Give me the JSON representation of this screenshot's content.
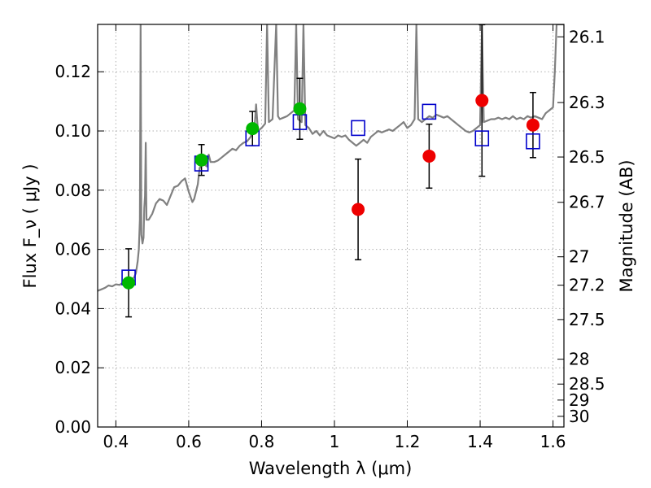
{
  "chart_data": {
    "type": "scatter",
    "xlabel": "Wavelength  λ (μm)",
    "ylabel": "Flux  F_ν  ( μJy )",
    "ylabel_right": "Magnitude (AB)",
    "xlim": [
      0.35,
      1.63
    ],
    "ylim": [
      0.0,
      0.136
    ],
    "grid": true,
    "x_ticks": [
      0.4,
      0.6,
      0.8,
      1.0,
      1.2,
      1.4,
      1.6
    ],
    "x_tick_labels": [
      "0.4",
      "0.6",
      "0.8",
      "1",
      "1.2",
      "1.4",
      "1.6"
    ],
    "y_ticks": [
      0.0,
      0.02,
      0.04,
      0.06,
      0.08,
      0.1,
      0.12
    ],
    "y_tick_labels": [
      "0.00",
      "0.02",
      "0.04",
      "0.06",
      "0.08",
      "0.10",
      "0.12"
    ],
    "right_ticks": [
      {
        "flux": 0.1318,
        "label": "26.1"
      },
      {
        "flux": 0.1096,
        "label": "26.3"
      },
      {
        "flux": 0.0912,
        "label": "26.5"
      },
      {
        "flux": 0.0759,
        "label": "26.7"
      },
      {
        "flux": 0.0575,
        "label": "27"
      },
      {
        "flux": 0.0479,
        "label": "27.2"
      },
      {
        "flux": 0.0363,
        "label": "27.5"
      },
      {
        "flux": 0.0229,
        "label": "28"
      },
      {
        "flux": 0.0145,
        "label": "28.5"
      },
      {
        "flux": 0.0091,
        "label": "29"
      },
      {
        "flux": 0.0036,
        "label": "30"
      }
    ],
    "colors": {
      "spectrum": "#808080",
      "model": "#0000cc",
      "green": "#00b800",
      "red": "#ee0000",
      "error": "#000000",
      "grid": "#b0b0b0"
    },
    "model_points": [
      {
        "x": 0.435,
        "y": 0.0505
      },
      {
        "x": 0.635,
        "y": 0.089
      },
      {
        "x": 0.775,
        "y": 0.0975
      },
      {
        "x": 0.905,
        "y": 0.103
      },
      {
        "x": 1.065,
        "y": 0.101
      },
      {
        "x": 1.26,
        "y": 0.1065
      },
      {
        "x": 1.405,
        "y": 0.0975
      },
      {
        "x": 1.545,
        "y": 0.0965
      }
    ],
    "observed_green": [
      {
        "x": 0.435,
        "y": 0.0487,
        "err": 0.0115
      },
      {
        "x": 0.635,
        "y": 0.0902,
        "err": 0.0052
      },
      {
        "x": 0.775,
        "y": 0.1008,
        "err": 0.0058
      },
      {
        "x": 0.905,
        "y": 0.1075,
        "err": 0.0103
      }
    ],
    "observed_red": [
      {
        "x": 1.065,
        "y": 0.0735,
        "err": 0.017
      },
      {
        "x": 1.26,
        "y": 0.0915,
        "err": 0.0108
      },
      {
        "x": 1.405,
        "y": 0.1103,
        "err": 0.0256
      },
      {
        "x": 1.545,
        "y": 0.102,
        "err": 0.011
      }
    ],
    "spectrum": [
      [
        0.35,
        0.046
      ],
      [
        0.36,
        0.0465
      ],
      [
        0.37,
        0.047
      ],
      [
        0.38,
        0.0478
      ],
      [
        0.39,
        0.0475
      ],
      [
        0.4,
        0.0482
      ],
      [
        0.41,
        0.048
      ],
      [
        0.42,
        0.0488
      ],
      [
        0.43,
        0.0492
      ],
      [
        0.44,
        0.0497
      ],
      [
        0.45,
        0.0505
      ],
      [
        0.455,
        0.052
      ],
      [
        0.46,
        0.056
      ],
      [
        0.463,
        0.06
      ],
      [
        0.466,
        0.07
      ],
      [
        0.468,
        0.136
      ],
      [
        0.47,
        0.065
      ],
      [
        0.473,
        0.062
      ],
      [
        0.476,
        0.064
      ],
      [
        0.478,
        0.074
      ],
      [
        0.48,
        0.078
      ],
      [
        0.482,
        0.096
      ],
      [
        0.484,
        0.07
      ],
      [
        0.49,
        0.07
      ],
      [
        0.5,
        0.072
      ],
      [
        0.51,
        0.0755
      ],
      [
        0.52,
        0.077
      ],
      [
        0.53,
        0.0765
      ],
      [
        0.54,
        0.075
      ],
      [
        0.55,
        0.078
      ],
      [
        0.56,
        0.081
      ],
      [
        0.57,
        0.0815
      ],
      [
        0.58,
        0.083
      ],
      [
        0.59,
        0.084
      ],
      [
        0.6,
        0.0795
      ],
      [
        0.61,
        0.076
      ],
      [
        0.615,
        0.077
      ],
      [
        0.625,
        0.082
      ],
      [
        0.63,
        0.0875
      ],
      [
        0.64,
        0.089
      ],
      [
        0.65,
        0.088
      ],
      [
        0.655,
        0.092
      ],
      [
        0.66,
        0.0895
      ],
      [
        0.67,
        0.0895
      ],
      [
        0.68,
        0.09
      ],
      [
        0.69,
        0.091
      ],
      [
        0.7,
        0.092
      ],
      [
        0.71,
        0.093
      ],
      [
        0.72,
        0.094
      ],
      [
        0.73,
        0.0935
      ],
      [
        0.74,
        0.095
      ],
      [
        0.75,
        0.096
      ],
      [
        0.76,
        0.0965
      ],
      [
        0.77,
        0.098
      ],
      [
        0.775,
        0.1
      ],
      [
        0.78,
        0.0995
      ],
      [
        0.785,
        0.109
      ],
      [
        0.79,
        0.1
      ],
      [
        0.8,
        0.101
      ],
      [
        0.81,
        0.1025
      ],
      [
        0.815,
        0.136
      ],
      [
        0.82,
        0.103
      ],
      [
        0.83,
        0.104
      ],
      [
        0.84,
        0.136
      ],
      [
        0.845,
        0.105
      ],
      [
        0.85,
        0.104
      ],
      [
        0.86,
        0.1045
      ],
      [
        0.87,
        0.105
      ],
      [
        0.88,
        0.106
      ],
      [
        0.89,
        0.107
      ],
      [
        0.895,
        0.136
      ],
      [
        0.9,
        0.104
      ],
      [
        0.91,
        0.103
      ],
      [
        0.915,
        0.136
      ],
      [
        0.92,
        0.102
      ],
      [
        0.93,
        0.101
      ],
      [
        0.94,
        0.099
      ],
      [
        0.95,
        0.1
      ],
      [
        0.96,
        0.0985
      ],
      [
        0.97,
        0.1
      ],
      [
        0.98,
        0.0985
      ],
      [
        0.99,
        0.098
      ],
      [
        1.0,
        0.0975
      ],
      [
        1.01,
        0.0985
      ],
      [
        1.02,
        0.098
      ],
      [
        1.03,
        0.0985
      ],
      [
        1.04,
        0.097
      ],
      [
        1.05,
        0.096
      ],
      [
        1.06,
        0.095
      ],
      [
        1.07,
        0.096
      ],
      [
        1.08,
        0.097
      ],
      [
        1.09,
        0.096
      ],
      [
        1.1,
        0.098
      ],
      [
        1.11,
        0.099
      ],
      [
        1.12,
        0.1
      ],
      [
        1.13,
        0.0995
      ],
      [
        1.14,
        0.1
      ],
      [
        1.15,
        0.1005
      ],
      [
        1.16,
        0.1
      ],
      [
        1.17,
        0.101
      ],
      [
        1.18,
        0.102
      ],
      [
        1.19,
        0.103
      ],
      [
        1.2,
        0.101
      ],
      [
        1.21,
        0.102
      ],
      [
        1.22,
        0.104
      ],
      [
        1.225,
        0.136
      ],
      [
        1.23,
        0.104
      ],
      [
        1.24,
        0.103
      ],
      [
        1.25,
        0.104
      ],
      [
        1.26,
        0.105
      ],
      [
        1.27,
        0.1045
      ],
      [
        1.28,
        0.1055
      ],
      [
        1.29,
        0.105
      ],
      [
        1.3,
        0.1045
      ],
      [
        1.31,
        0.105
      ],
      [
        1.32,
        0.104
      ],
      [
        1.33,
        0.103
      ],
      [
        1.34,
        0.102
      ],
      [
        1.35,
        0.101
      ],
      [
        1.36,
        0.1
      ],
      [
        1.37,
        0.0995
      ],
      [
        1.38,
        0.1
      ],
      [
        1.39,
        0.101
      ],
      [
        1.4,
        0.102
      ],
      [
        1.405,
        0.136
      ],
      [
        1.41,
        0.103
      ],
      [
        1.42,
        0.1035
      ],
      [
        1.43,
        0.104
      ],
      [
        1.44,
        0.104
      ],
      [
        1.45,
        0.1045
      ],
      [
        1.46,
        0.104
      ],
      [
        1.47,
        0.1045
      ],
      [
        1.48,
        0.104
      ],
      [
        1.49,
        0.105
      ],
      [
        1.5,
        0.104
      ],
      [
        1.51,
        0.1045
      ],
      [
        1.52,
        0.104
      ],
      [
        1.53,
        0.105
      ],
      [
        1.54,
        0.1045
      ],
      [
        1.55,
        0.105
      ],
      [
        1.56,
        0.1045
      ],
      [
        1.57,
        0.104
      ],
      [
        1.58,
        0.106
      ],
      [
        1.59,
        0.107
      ],
      [
        1.6,
        0.108
      ],
      [
        1.605,
        0.12
      ],
      [
        1.61,
        0.136
      ],
      [
        1.63,
        0.136
      ]
    ]
  }
}
